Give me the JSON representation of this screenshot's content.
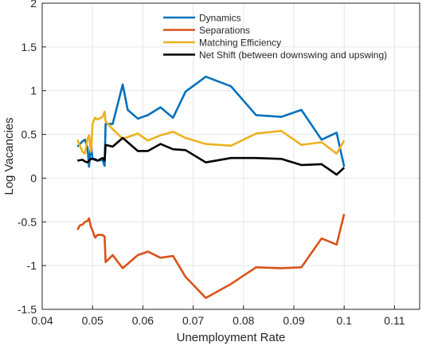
{
  "chart_data": {
    "type": "line",
    "xlabel": "Unemployment Rate",
    "ylabel": "Log Vacancies",
    "xlim": [
      0.04,
      0.115
    ],
    "ylim": [
      -1.5,
      2
    ],
    "grid": true,
    "legend_position": "top-center",
    "x_ticks": [
      0.04,
      0.05,
      0.06,
      0.07,
      0.08,
      0.09,
      0.1,
      0.11
    ],
    "x_tick_labels": [
      "0.04",
      "0.05",
      "0.06",
      "0.07",
      "0.08",
      "0.09",
      "0.1",
      "0.11"
    ],
    "y_ticks": [
      -1.5,
      -1,
      -0.5,
      0,
      0.5,
      1,
      1.5,
      2
    ],
    "y_tick_labels": [
      "-1.5",
      "-1",
      "-0.5",
      "0",
      "0.5",
      "1",
      "1.5",
      "2"
    ],
    "series": [
      {
        "name": "Dynamics",
        "color": "#0072BD",
        "points": [
          [
            0.047,
            0.36
          ],
          [
            0.048,
            0.42
          ],
          [
            0.0485,
            0.44
          ],
          [
            0.049,
            0.35
          ],
          [
            0.0493,
            0.13
          ],
          [
            0.0497,
            0.4
          ],
          [
            0.05,
            0.22
          ],
          [
            0.0505,
            0.22
          ],
          [
            0.051,
            0.2
          ],
          [
            0.052,
            0.21
          ],
          [
            0.0524,
            0.14
          ],
          [
            0.0526,
            0.62
          ],
          [
            0.054,
            0.62
          ],
          [
            0.056,
            1.07
          ],
          [
            0.057,
            0.78
          ],
          [
            0.059,
            0.68
          ],
          [
            0.061,
            0.72
          ],
          [
            0.0635,
            0.81
          ],
          [
            0.066,
            0.69
          ],
          [
            0.0685,
            0.99
          ],
          [
            0.0725,
            1.16
          ],
          [
            0.0775,
            1.05
          ],
          [
            0.0825,
            0.72
          ],
          [
            0.0875,
            0.7
          ],
          [
            0.0915,
            0.78
          ],
          [
            0.0955,
            0.44
          ],
          [
            0.0985,
            0.52
          ],
          [
            0.1,
            0.13
          ]
        ]
      },
      {
        "name": "Separations",
        "color": "#D95319",
        "points": [
          [
            0.047,
            -0.59
          ],
          [
            0.0475,
            -0.54
          ],
          [
            0.048,
            -0.53
          ],
          [
            0.0485,
            -0.5
          ],
          [
            0.049,
            -0.49
          ],
          [
            0.0493,
            -0.46
          ],
          [
            0.0497,
            -0.56
          ],
          [
            0.05,
            -0.6
          ],
          [
            0.0505,
            -0.68
          ],
          [
            0.051,
            -0.65
          ],
          [
            0.052,
            -0.65
          ],
          [
            0.0524,
            -0.67
          ],
          [
            0.0526,
            -0.96
          ],
          [
            0.054,
            -0.88
          ],
          [
            0.056,
            -1.03
          ],
          [
            0.059,
            -0.88
          ],
          [
            0.061,
            -0.84
          ],
          [
            0.0635,
            -0.91
          ],
          [
            0.066,
            -0.89
          ],
          [
            0.0685,
            -1.13
          ],
          [
            0.0725,
            -1.37
          ],
          [
            0.0775,
            -1.21
          ],
          [
            0.0825,
            -1.02
          ],
          [
            0.0875,
            -1.03
          ],
          [
            0.0915,
            -1.02
          ],
          [
            0.0955,
            -0.69
          ],
          [
            0.0985,
            -0.76
          ],
          [
            0.1,
            -0.41
          ]
        ]
      },
      {
        "name": "Matching Efficiency",
        "color": "#EDB120",
        "points": [
          [
            0.047,
            0.44
          ],
          [
            0.048,
            0.3
          ],
          [
            0.0485,
            0.28
          ],
          [
            0.049,
            0.45
          ],
          [
            0.0493,
            0.49
          ],
          [
            0.0497,
            0.3
          ],
          [
            0.05,
            0.62
          ],
          [
            0.0505,
            0.69
          ],
          [
            0.051,
            0.67
          ],
          [
            0.052,
            0.7
          ],
          [
            0.0524,
            0.76
          ],
          [
            0.0526,
            0.65
          ],
          [
            0.054,
            0.56
          ],
          [
            0.056,
            0.45
          ],
          [
            0.059,
            0.51
          ],
          [
            0.061,
            0.43
          ],
          [
            0.0635,
            0.49
          ],
          [
            0.066,
            0.53
          ],
          [
            0.0685,
            0.46
          ],
          [
            0.0725,
            0.39
          ],
          [
            0.0775,
            0.37
          ],
          [
            0.0825,
            0.51
          ],
          [
            0.0875,
            0.54
          ],
          [
            0.0915,
            0.38
          ],
          [
            0.0955,
            0.41
          ],
          [
            0.0985,
            0.28
          ],
          [
            0.1,
            0.43
          ]
        ]
      },
      {
        "name": "Net Shift (between downswing and upswing)",
        "color": "#000000",
        "points": [
          [
            0.047,
            0.2
          ],
          [
            0.048,
            0.21
          ],
          [
            0.0485,
            0.19
          ],
          [
            0.049,
            0.18
          ],
          [
            0.0493,
            0.2
          ],
          [
            0.0497,
            0.22
          ],
          [
            0.05,
            0.22
          ],
          [
            0.0505,
            0.21
          ],
          [
            0.051,
            0.2
          ],
          [
            0.052,
            0.23
          ],
          [
            0.0524,
            0.2
          ],
          [
            0.0526,
            0.38
          ],
          [
            0.054,
            0.36
          ],
          [
            0.056,
            0.46
          ],
          [
            0.059,
            0.31
          ],
          [
            0.061,
            0.31
          ],
          [
            0.0635,
            0.39
          ],
          [
            0.066,
            0.33
          ],
          [
            0.0685,
            0.32
          ],
          [
            0.0725,
            0.18
          ],
          [
            0.0775,
            0.23
          ],
          [
            0.0825,
            0.23
          ],
          [
            0.0875,
            0.22
          ],
          [
            0.0915,
            0.15
          ],
          [
            0.0955,
            0.16
          ],
          [
            0.0985,
            0.04
          ],
          [
            0.1,
            0.12
          ]
        ]
      }
    ]
  }
}
